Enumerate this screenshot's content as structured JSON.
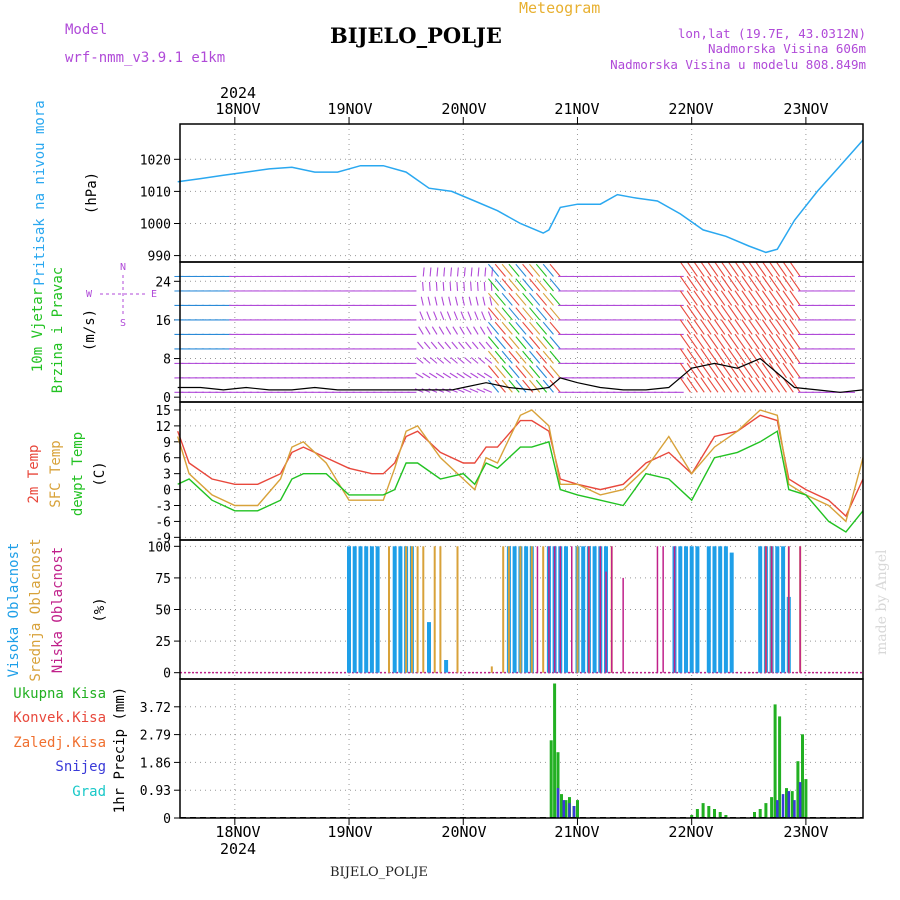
{
  "header": {
    "model_label": "Model",
    "model_value": "wrf-nmm_v3.9.1 e1km",
    "meteogram_label": "Meteogram",
    "station_title": "BIJELO_POLJE",
    "station_footer": "BIJELO_POLJE",
    "coords": "lon,lat (19.7E, 43.0312N)",
    "elevation": "Nadmorska Visina 606m",
    "model_elevation": "Nadmorska Visina u modelu 808.849m",
    "watermark": "made by Angel"
  },
  "colors": {
    "pressure": "#2aa8f0",
    "t2m": "#e8483c",
    "tsfc": "#d8a23a",
    "dewpoint": "#22c222",
    "high_cloud": "#1e9fe8",
    "mid_cloud": "#d8a23a",
    "low_cloud": "#c0208a",
    "precip_total": "#22b022",
    "precip_conv": "#e8483c",
    "precip_snow": "#3a3ad8",
    "precip_hail": "#18c8c8",
    "label_purple": "#b04ad8"
  },
  "chart_data": [
    {
      "type": "line",
      "name": "pressure",
      "ylabel_lines": [
        "Pritisak na nivou mora"
      ],
      "unit": "(hPa)",
      "ylim": [
        988,
        1031
      ],
      "yticks": [
        990,
        1000,
        1010,
        1020
      ],
      "x_days": [
        17.5,
        17.7,
        17.9,
        18.1,
        18.3,
        18.5,
        18.7,
        18.9,
        19.1,
        19.3,
        19.5,
        19.7,
        19.9,
        20.1,
        20.3,
        20.5,
        20.7,
        20.75,
        20.85,
        21.0,
        21.2,
        21.35,
        21.5,
        21.7,
        21.9,
        22.1,
        22.3,
        22.5,
        22.65,
        22.75,
        22.9,
        23.1,
        23.3,
        23.5
      ],
      "values": [
        1013,
        1014,
        1015,
        1016,
        1017,
        1017.5,
        1016,
        1016,
        1018,
        1018,
        1016,
        1011,
        1010,
        1007,
        1004,
        1000,
        997,
        998,
        1005,
        1006,
        1006,
        1009,
        1008,
        1007,
        1003,
        998,
        996,
        993,
        991,
        992,
        1001,
        1010,
        1018,
        1026
      ]
    },
    {
      "type": "line",
      "name": "wind",
      "ylabel_lines": [
        "10m Vjetar",
        "Brzina i Pravac"
      ],
      "unit": "(m/s)",
      "compass": [
        "N",
        "E",
        "S",
        "W"
      ],
      "ylim": [
        -1,
        28
      ],
      "yticks": [
        0,
        8,
        16,
        24
      ],
      "x_days": [
        17.5,
        17.7,
        17.9,
        18.1,
        18.3,
        18.5,
        18.7,
        18.9,
        19.1,
        19.3,
        19.5,
        19.7,
        19.9,
        20.0,
        20.2,
        20.4,
        20.6,
        20.75,
        20.85,
        21.0,
        21.2,
        21.4,
        21.6,
        21.8,
        22.0,
        22.2,
        22.4,
        22.6,
        22.75,
        22.9,
        23.1,
        23.3,
        23.5
      ],
      "values": [
        2,
        2,
        1.5,
        2,
        1.5,
        1.5,
        2,
        1.5,
        1.5,
        1.5,
        1.5,
        1.5,
        1.5,
        2,
        3,
        2,
        1.5,
        2,
        4,
        3,
        2,
        1.5,
        1.5,
        2,
        6,
        7,
        6,
        8,
        5,
        2,
        1.5,
        1,
        1.5
      ]
    },
    {
      "type": "line",
      "name": "temperature",
      "ylabel_lines": [
        "2m Temp",
        "SFC Temp",
        "dewpt Temp"
      ],
      "unit": "(C)",
      "ylim": [
        -9.5,
        16.5
      ],
      "yticks": [
        -9,
        -6,
        -3,
        0,
        3,
        6,
        9,
        12,
        15
      ],
      "x_days": [
        17.5,
        17.6,
        17.8,
        18.0,
        18.2,
        18.4,
        18.5,
        18.6,
        18.8,
        19.0,
        19.2,
        19.3,
        19.4,
        19.5,
        19.6,
        19.8,
        20.0,
        20.1,
        20.2,
        20.3,
        20.5,
        20.6,
        20.75,
        20.85,
        21.0,
        21.2,
        21.4,
        21.6,
        21.8,
        22.0,
        22.2,
        22.4,
        22.6,
        22.75,
        22.85,
        23.0,
        23.2,
        23.35,
        23.5
      ],
      "series": [
        {
          "name": "2m",
          "values": [
            11,
            5,
            2,
            1,
            1,
            3,
            7,
            8,
            6,
            4,
            3,
            3,
            5,
            10,
            11,
            7,
            5,
            5,
            8,
            8,
            13,
            13,
            11,
            2,
            1,
            0,
            1,
            5,
            7,
            3,
            10,
            11,
            14,
            13,
            2,
            0,
            -2,
            -5,
            2
          ]
        },
        {
          "name": "sfc",
          "values": [
            10,
            3,
            -1,
            -3,
            -3,
            2,
            8,
            9,
            5,
            -2,
            -2,
            -2,
            4,
            11,
            12,
            6,
            2,
            0,
            6,
            5,
            14,
            15,
            12,
            1,
            1,
            -1,
            0,
            4,
            10,
            3,
            8,
            11,
            15,
            14,
            1,
            -1,
            -3,
            -6,
            6
          ]
        },
        {
          "name": "dew",
          "values": [
            1,
            2,
            -2,
            -4,
            -4,
            -2,
            2,
            3,
            3,
            -1,
            -1,
            -1,
            0,
            5,
            5,
            2,
            3,
            1,
            5,
            4,
            8,
            8,
            9,
            0,
            -1,
            -2,
            -3,
            3,
            2,
            -2,
            6,
            7,
            9,
            11,
            0,
            -1,
            -6,
            -8,
            -4
          ]
        }
      ]
    },
    {
      "type": "bar",
      "name": "cloud",
      "ylabel_lines": [
        "Visoka Oblacnost",
        "Srednja Oblacnost",
        "Niska Oblacnost"
      ],
      "unit": "(%)",
      "ylim": [
        -5,
        105
      ],
      "yticks": [
        0,
        25,
        50,
        75,
        100
      ],
      "high": {
        "x_days": [
          19.0,
          19.05,
          19.1,
          19.15,
          19.2,
          19.25,
          19.4,
          19.45,
          19.5,
          19.55,
          19.7,
          19.85,
          20.4,
          20.45,
          20.5,
          20.55,
          20.6,
          20.75,
          20.8,
          20.85,
          20.9,
          21.0,
          21.05,
          21.1,
          21.15,
          21.2,
          21.25,
          21.85,
          21.9,
          21.95,
          22.0,
          22.05,
          22.15,
          22.2,
          22.25,
          22.3,
          22.35,
          22.6,
          22.65,
          22.7,
          22.75,
          22.8,
          22.85
        ],
        "values": [
          100,
          100,
          100,
          100,
          100,
          100,
          100,
          100,
          100,
          100,
          40,
          10,
          100,
          100,
          100,
          100,
          100,
          100,
          100,
          100,
          100,
          100,
          100,
          100,
          100,
          100,
          100,
          100,
          100,
          100,
          100,
          100,
          100,
          100,
          100,
          100,
          95,
          100,
          100,
          100,
          100,
          100,
          60
        ]
      },
      "mid": {
        "x_days": [
          19.35,
          19.5,
          19.55,
          19.6,
          19.65,
          19.75,
          19.8,
          19.95,
          20.25,
          20.35,
          20.4,
          20.5,
          20.6,
          20.7,
          21.0,
          21.1,
          21.3,
          22.65,
          22.7,
          22.85,
          22.95
        ],
        "values": [
          100,
          100,
          100,
          100,
          100,
          100,
          100,
          100,
          5,
          100,
          100,
          100,
          100,
          100,
          100,
          100,
          100,
          100,
          100,
          100,
          100
        ]
      },
      "low": {
        "x_days": [
          20.65,
          20.75,
          20.8,
          20.85,
          20.95,
          21.1,
          21.2,
          21.25,
          21.3,
          21.4,
          21.7,
          21.75,
          21.85,
          22.65,
          22.7,
          22.85,
          22.95
        ],
        "values": [
          100,
          100,
          100,
          100,
          100,
          100,
          100,
          80,
          100,
          75,
          100,
          100,
          100,
          100,
          100,
          100,
          100
        ]
      }
    },
    {
      "type": "bar",
      "name": "precip",
      "ylabel_lines": [
        "1hr Precip (mm)"
      ],
      "ylim": [
        0,
        4.65
      ],
      "yticks": [
        0,
        0.93,
        1.86,
        2.79,
        3.72
      ],
      "legend": [
        "Ukupna Kisa",
        "Konvek.Kisa",
        "Zaledj.Kisa",
        "Snijeg",
        "Grad"
      ],
      "total": {
        "x_days": [
          20.77,
          20.8,
          20.83,
          20.86,
          20.9,
          20.93,
          20.97,
          21.0,
          22.0,
          22.05,
          22.1,
          22.15,
          22.2,
          22.25,
          22.3,
          22.55,
          22.6,
          22.65,
          22.7,
          22.73,
          22.77,
          22.83,
          22.88,
          22.93,
          22.97,
          23.0
        ],
        "values": [
          2.6,
          4.5,
          2.2,
          0.8,
          0.6,
          0.7,
          0.4,
          0.6,
          0.1,
          0.3,
          0.5,
          0.4,
          0.3,
          0.2,
          0.1,
          0.2,
          0.3,
          0.5,
          0.7,
          3.8,
          3.4,
          1.0,
          0.9,
          1.9,
          2.8,
          1.3
        ]
      },
      "snow": {
        "x_days": [
          20.83,
          20.88,
          20.93,
          20.97,
          22.75,
          22.8,
          22.85,
          22.9,
          22.95
        ],
        "values": [
          1.0,
          0.6,
          0.5,
          0.4,
          0.6,
          0.8,
          0.9,
          0.6,
          1.2
        ]
      }
    }
  ],
  "xaxis": {
    "ticks": [
      "18NOV",
      "19NOV",
      "20NOV",
      "21NOV",
      "22NOV",
      "23NOV"
    ],
    "year": "2024",
    "range": [
      17.52,
      23.5
    ]
  }
}
